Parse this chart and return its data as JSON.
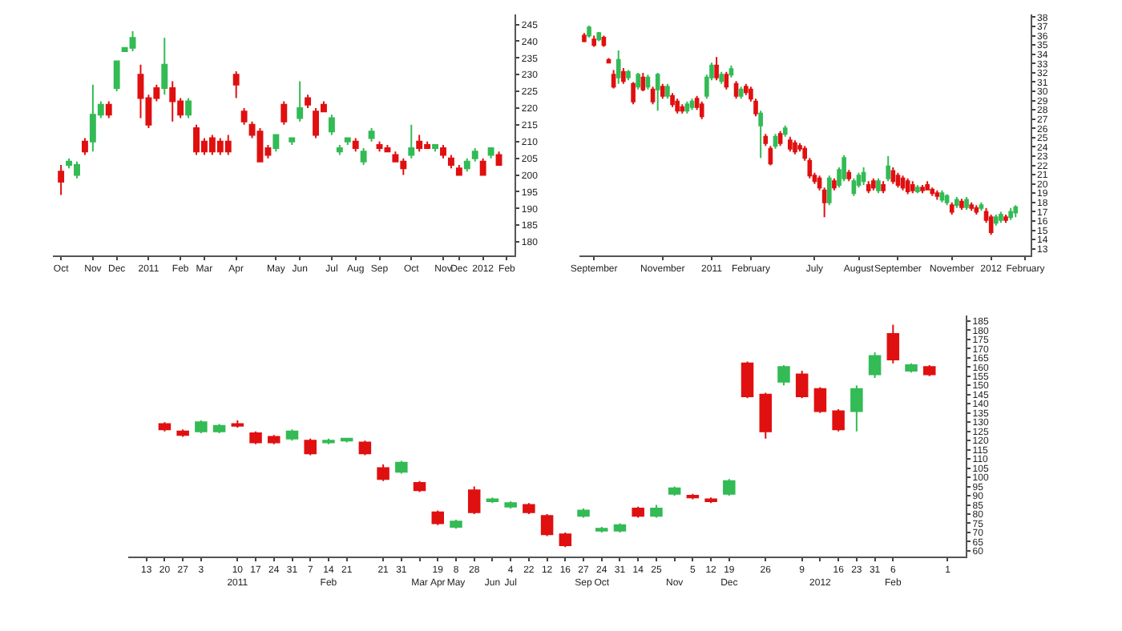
{
  "chart_data": [
    {
      "type": "candlestick",
      "ylim": [
        176,
        248
      ],
      "yticks": [
        180,
        185,
        190,
        195,
        200,
        205,
        210,
        215,
        220,
        225,
        230,
        235,
        240,
        245
      ],
      "categories": [
        "Oct",
        null,
        null,
        null,
        "Nov",
        null,
        null,
        "Dec",
        null,
        null,
        null,
        "2011",
        null,
        null,
        null,
        "Feb",
        null,
        null,
        "Mar",
        null,
        null,
        null,
        "Apr",
        null,
        null,
        null,
        null,
        "May",
        null,
        null,
        "Jun",
        null,
        null,
        null,
        "Jul",
        null,
        null,
        "Aug",
        null,
        null,
        "Sep",
        null,
        null,
        null,
        "Oct",
        null,
        null,
        null,
        "Nov",
        null,
        "Dec",
        null,
        null,
        "2012",
        null,
        null,
        "Feb"
      ],
      "colors": [
        "#e01010",
        "#33bb55",
        "#33bb55",
        "#e01010",
        "#33bb55",
        "#33bb55",
        "#e01010",
        "#33bb55",
        "#33bb55",
        "#33bb55",
        "#e01010",
        "#e01010",
        "#e01010",
        "#33bb55",
        "#e01010",
        "#e01010",
        "#33bb55",
        "#e01010",
        "#e01010",
        "#e01010",
        "#e01010",
        "#e01010",
        "#e01010",
        "#e01010",
        "#e01010",
        "#e01010",
        "#e01010",
        "#33bb55",
        "#e01010",
        "#33bb55",
        "#33bb55",
        "#e01010",
        "#e01010",
        "#e01010",
        "#33bb55",
        "#33bb55",
        "#33bb55",
        "#e01010",
        "#33bb55",
        "#33bb55",
        "#e01010",
        "#e01010",
        "#e01010",
        "#e01010",
        "#33bb55",
        "#e01010",
        "#e01010",
        "#33bb55",
        "#e01010",
        "#e01010",
        "#e01010",
        "#33bb55",
        "#33bb55",
        "#e01010",
        "#33bb55",
        "#e01010",
        null
      ],
      "ohlc": [
        [
          201,
          203,
          194,
          198
        ],
        [
          203,
          205,
          202,
          204
        ],
        [
          200,
          204,
          199,
          203
        ],
        [
          210,
          211,
          206,
          207
        ],
        [
          210,
          227,
          207,
          218
        ],
        [
          218,
          222,
          217,
          221
        ],
        [
          221,
          222,
          217,
          218
        ],
        [
          226,
          234,
          225,
          234
        ],
        [
          237,
          238,
          237,
          238
        ],
        [
          238,
          243,
          237,
          241
        ],
        [
          230,
          233,
          217,
          223
        ],
        [
          223,
          224,
          214,
          215
        ],
        [
          226,
          227,
          222,
          223
        ],
        [
          226,
          241,
          224,
          233
        ],
        [
          226,
          228,
          216,
          222
        ],
        [
          222,
          223,
          217,
          218
        ],
        [
          218,
          223,
          217,
          222
        ],
        [
          214,
          215,
          206,
          207
        ],
        [
          210,
          211,
          206,
          207
        ],
        [
          211,
          212,
          206,
          207
        ],
        [
          210,
          211,
          206,
          207
        ],
        [
          210,
          212,
          206,
          207
        ],
        [
          230,
          231,
          223,
          227
        ],
        [
          219,
          220,
          215,
          216
        ],
        [
          215,
          216,
          211,
          212
        ],
        [
          213,
          214,
          204,
          204
        ],
        [
          208,
          209,
          205,
          206
        ],
        [
          208,
          212,
          207,
          212
        ],
        [
          221,
          222,
          215,
          216
        ],
        [
          210,
          211,
          209,
          211
        ],
        [
          217,
          228,
          216,
          220
        ],
        [
          223,
          224,
          220,
          221
        ],
        [
          219,
          220,
          211,
          212
        ],
        [
          221,
          222,
          219,
          219
        ],
        [
          213,
          218,
          212,
          217
        ],
        [
          207,
          209,
          206,
          208
        ],
        [
          210,
          211,
          209,
          211
        ],
        [
          210,
          211,
          207,
          208
        ],
        [
          204,
          208,
          203,
          207
        ],
        [
          211,
          214,
          210,
          213
        ],
        [
          209,
          210,
          207,
          208
        ],
        [
          208,
          209,
          207,
          207
        ],
        [
          206,
          207,
          204,
          204
        ],
        [
          204,
          205,
          200,
          202
        ],
        [
          206,
          215,
          205,
          208
        ],
        [
          210,
          212,
          207,
          208
        ],
        [
          209,
          210,
          208,
          208
        ],
        [
          208,
          209,
          207,
          209
        ],
        [
          208,
          209,
          205,
          206
        ],
        [
          205,
          206,
          202,
          203
        ],
        [
          202,
          203,
          200,
          200
        ],
        [
          202,
          205,
          201,
          204
        ],
        [
          205,
          208,
          204,
          207
        ],
        [
          204,
          205,
          200,
          200
        ],
        [
          206,
          208,
          205,
          208
        ],
        [
          206,
          207,
          203,
          203
        ],
        null
      ]
    },
    {
      "type": "candlestick",
      "ylim": [
        12.3,
        38.3
      ],
      "yticks": [
        13,
        14,
        15,
        16,
        17,
        18,
        19,
        20,
        21,
        22,
        23,
        24,
        25,
        26,
        27,
        28,
        29,
        30,
        31,
        32,
        33,
        34,
        35,
        36,
        37,
        38
      ],
      "categories": [
        null,
        null,
        "September",
        null,
        null,
        null,
        null,
        null,
        null,
        null,
        null,
        null,
        null,
        null,
        null,
        null,
        "November",
        null,
        null,
        null,
        null,
        null,
        null,
        null,
        null,
        null,
        "2011",
        null,
        null,
        null,
        null,
        null,
        null,
        null,
        "February",
        null,
        null,
        null,
        null,
        null,
        null,
        null,
        null,
        null,
        null,
        null,
        null,
        "July",
        null,
        null,
        null,
        null,
        null,
        null,
        null,
        null,
        "August",
        null,
        null,
        null,
        null,
        null,
        null,
        null,
        "September",
        null,
        null,
        null,
        null,
        null,
        null,
        null,
        null,
        null,
        null,
        "November",
        null,
        null,
        null,
        null,
        null,
        null,
        null,
        "2012",
        null,
        null,
        null,
        null,
        null,
        null,
        "February"
      ],
      "colors": [
        "#e01010",
        "#33bb55",
        "#e01010",
        "#33bb55",
        "#e01010",
        "#e01010",
        "#e01010",
        "#33bb55",
        "#e01010",
        "#33bb55",
        "#e01010",
        "#33bb55",
        "#e01010",
        "#33bb55",
        "#e01010",
        "#33bb55",
        "#e01010",
        "#33bb55",
        "#e01010",
        "#e01010",
        "#e01010",
        "#33bb55",
        "#33bb55",
        "#e01010",
        "#e01010",
        "#33bb55",
        "#33bb55",
        "#e01010",
        "#33bb55",
        "#e01010",
        "#33bb55",
        "#e01010",
        "#33bb55",
        "#e01010",
        "#e01010",
        "#e01010",
        "#33bb55",
        "#e01010",
        "#e01010",
        "#33bb55",
        "#e01010",
        "#33bb55",
        "#e01010",
        "#e01010",
        "#e01010",
        "#e01010",
        "#e01010",
        "#e01010",
        "#e01010",
        "#e01010",
        "#33bb55",
        "#e01010",
        "#33bb55",
        "#33bb55",
        "#e01010",
        "#33bb55",
        "#33bb55",
        "#33bb55",
        "#e01010",
        "#e01010",
        "#33bb55",
        "#e01010",
        "#33bb55",
        "#e01010",
        "#e01010",
        "#e01010",
        "#e01010",
        "#e01010",
        "#33bb55",
        "#e01010",
        "#e01010",
        "#e01010",
        "#e01010",
        "#33bb55",
        "#33bb55",
        "#e01010",
        "#33bb55",
        "#e01010",
        "#33bb55",
        "#e01010",
        "#e01010",
        "#33bb55",
        "#e01010",
        "#e01010",
        "#33bb55",
        "#33bb55",
        "#e01010",
        "#33bb55",
        "#33bb55",
        null,
        null
      ],
      "ohlc": [
        [
          36.0,
          36.3,
          35.3,
          35.4
        ],
        [
          36.0,
          37.1,
          35.8,
          36.9
        ],
        [
          35.6,
          36.0,
          34.8,
          35.0
        ],
        [
          35.6,
          36.4,
          35.4,
          36.3
        ],
        [
          35.8,
          36.0,
          34.8,
          35.0
        ],
        [
          33.4,
          33.6,
          33.0,
          33.1
        ],
        [
          31.8,
          32.3,
          30.3,
          30.5
        ],
        [
          31.5,
          34.4,
          30.8,
          33.4
        ],
        [
          32.1,
          32.5,
          30.8,
          31.1
        ],
        [
          31.5,
          32.3,
          31.2,
          32.1
        ],
        [
          30.8,
          31.0,
          28.6,
          28.9
        ],
        [
          30.5,
          32.0,
          30.2,
          31.8
        ],
        [
          31.5,
          32.0,
          30.0,
          30.2
        ],
        [
          30.5,
          31.8,
          30.2,
          31.5
        ],
        [
          30.2,
          30.5,
          28.6,
          28.9
        ],
        [
          30.2,
          32.0,
          27.9,
          31.8
        ],
        [
          30.5,
          30.8,
          29.2,
          29.5
        ],
        [
          29.5,
          30.8,
          29.2,
          30.5
        ],
        [
          29.5,
          29.8,
          28.3,
          28.6
        ],
        [
          28.9,
          29.2,
          27.6,
          27.9
        ],
        [
          28.3,
          28.6,
          27.6,
          27.9
        ],
        [
          27.9,
          28.9,
          27.6,
          28.6
        ],
        [
          28.3,
          29.2,
          28.0,
          28.9
        ],
        [
          29.2,
          29.5,
          28.0,
          28.3
        ],
        [
          28.6,
          28.9,
          27.0,
          27.3
        ],
        [
          29.5,
          31.8,
          29.2,
          31.5
        ],
        [
          31.5,
          33.1,
          31.2,
          32.8
        ],
        [
          32.8,
          33.7,
          31.2,
          31.5
        ],
        [
          31.1,
          32.1,
          30.8,
          31.8
        ],
        [
          31.8,
          32.1,
          30.2,
          30.5
        ],
        [
          31.8,
          32.8,
          31.5,
          32.4
        ],
        [
          30.8,
          31.1,
          29.2,
          29.5
        ],
        [
          29.5,
          30.5,
          29.2,
          30.2
        ],
        [
          30.5,
          30.8,
          29.6,
          29.9
        ],
        [
          30.2,
          30.5,
          28.9,
          29.2
        ],
        [
          28.9,
          29.2,
          27.3,
          27.6
        ],
        [
          26.3,
          27.9,
          22.8,
          27.6
        ],
        [
          25.1,
          25.4,
          24.1,
          24.4
        ],
        [
          23.8,
          24.1,
          22.0,
          22.2
        ],
        [
          24.1,
          25.4,
          23.8,
          25.1
        ],
        [
          25.4,
          25.7,
          24.1,
          24.4
        ],
        [
          25.4,
          26.3,
          25.1,
          26.0
        ],
        [
          24.7,
          25.1,
          23.5,
          23.8
        ],
        [
          24.4,
          24.7,
          23.2,
          23.5
        ],
        [
          24.1,
          24.4,
          23.5,
          23.8
        ],
        [
          23.8,
          24.1,
          22.5,
          22.8
        ],
        [
          22.5,
          22.8,
          20.6,
          20.9
        ],
        [
          20.9,
          21.2,
          20.0,
          20.3
        ],
        [
          20.6,
          20.9,
          19.3,
          19.6
        ],
        [
          19.3,
          19.6,
          16.4,
          18.0
        ],
        [
          18.0,
          20.9,
          17.7,
          20.6
        ],
        [
          20.3,
          20.6,
          19.3,
          19.6
        ],
        [
          19.9,
          21.8,
          19.6,
          21.5
        ],
        [
          20.6,
          23.1,
          20.3,
          22.8
        ],
        [
          21.2,
          21.5,
          20.3,
          20.6
        ],
        [
          19.0,
          20.6,
          18.7,
          20.3
        ],
        [
          19.9,
          21.2,
          19.6,
          20.9
        ],
        [
          20.3,
          21.8,
          19.9,
          21.2
        ],
        [
          19.9,
          20.3,
          19.0,
          19.3
        ],
        [
          20.3,
          20.6,
          19.3,
          19.6
        ],
        [
          19.3,
          20.6,
          19.0,
          20.3
        ],
        [
          19.9,
          20.3,
          19.0,
          19.3
        ],
        [
          20.6,
          23.0,
          20.3,
          21.9
        ],
        [
          21.4,
          21.8,
          20.0,
          20.3
        ],
        [
          20.9,
          21.2,
          19.6,
          19.9
        ],
        [
          20.6,
          20.9,
          19.3,
          19.6
        ],
        [
          20.3,
          20.6,
          18.9,
          19.2
        ],
        [
          19.9,
          20.3,
          19.0,
          19.3
        ],
        [
          19.2,
          19.9,
          19.0,
          19.6
        ],
        [
          19.6,
          19.9,
          19.0,
          19.3
        ],
        [
          19.9,
          20.3,
          19.3,
          19.4
        ],
        [
          19.4,
          19.6,
          18.7,
          19.0
        ],
        [
          19.0,
          19.3,
          18.3,
          18.7
        ],
        [
          18.3,
          19.3,
          18.0,
          19.0
        ],
        [
          18.0,
          18.9,
          17.7,
          18.7
        ],
        [
          17.7,
          18.0,
          16.7,
          17.0
        ],
        [
          17.7,
          18.6,
          17.4,
          18.3
        ],
        [
          18.1,
          18.4,
          17.2,
          17.5
        ],
        [
          17.5,
          18.6,
          17.2,
          18.3
        ],
        [
          17.7,
          18.0,
          17.1,
          17.4
        ],
        [
          17.4,
          17.7,
          16.7,
          17.0
        ],
        [
          17.4,
          18.0,
          17.1,
          17.7
        ],
        [
          17.0,
          17.4,
          15.8,
          16.1
        ],
        [
          16.4,
          16.7,
          14.5,
          14.8
        ],
        [
          15.8,
          16.7,
          15.5,
          16.4
        ],
        [
          16.1,
          17.0,
          15.8,
          16.7
        ],
        [
          16.4,
          16.7,
          15.8,
          16.1
        ],
        [
          16.4,
          17.4,
          16.1,
          17.0
        ],
        [
          16.9,
          17.7,
          16.4,
          17.5
        ],
        null,
        null
      ]
    },
    {
      "type": "candlestick",
      "ylim": [
        57,
        188
      ],
      "yticks": [
        60,
        65,
        70,
        75,
        80,
        85,
        90,
        95,
        100,
        105,
        110,
        115,
        120,
        125,
        130,
        135,
        140,
        145,
        150,
        155,
        160,
        165,
        170,
        175,
        180,
        185
      ],
      "categories": [
        "13",
        "20",
        "27",
        "3",
        null,
        "10\n2011",
        "17",
        "24",
        "31",
        "7",
        "14\nFeb",
        "21",
        null,
        "21",
        "31",
        "\nMar",
        "19\nApr",
        "8\nMay",
        "28",
        "\nJun",
        "4\nJul",
        "22",
        "12",
        "16",
        "27\nSep",
        "24\nOct",
        "31",
        "14",
        "25",
        "\nNov",
        "5",
        "12",
        "19\nDec",
        null,
        "26",
        null,
        "9",
        "\n2012",
        "16",
        "23",
        "31",
        "6\nFeb",
        null,
        null,
        "1"
      ],
      "colors": [
        null,
        "#e01010",
        "#e01010",
        "#33bb55",
        "#33bb55",
        "#e01010",
        "#e01010",
        "#e01010",
        "#33bb55",
        "#e01010",
        "#33bb55",
        "#33bb55",
        "#e01010",
        "#e01010",
        "#33bb55",
        "#e01010",
        "#e01010",
        "#33bb55",
        "#e01010",
        "#33bb55",
        "#33bb55",
        "#e01010",
        "#e01010",
        "#e01010",
        "#33bb55",
        "#33bb55",
        "#33bb55",
        "#e01010",
        "#33bb55",
        "#33bb55",
        "#e01010",
        "#e01010",
        "#33bb55",
        "#e01010",
        "#e01010",
        "#33bb55",
        "#e01010",
        "#e01010",
        "#e01010",
        "#33bb55",
        "#33bb55",
        "#e01010",
        "#33bb55",
        "#e01010",
        null
      ],
      "ohlc": [
        null,
        [
          129,
          130,
          125,
          126
        ],
        [
          125,
          126,
          122,
          123
        ],
        [
          125,
          131,
          124,
          130
        ],
        [
          125,
          129,
          124,
          128
        ],
        [
          129,
          131,
          127,
          128
        ],
        [
          124,
          125,
          118,
          119
        ],
        [
          122,
          123,
          118,
          119
        ],
        [
          121,
          126,
          120,
          125
        ],
        [
          120,
          121,
          112,
          113
        ],
        [
          119,
          121,
          118,
          120
        ],
        [
          120,
          121,
          119,
          121
        ],
        [
          119,
          120,
          112,
          113
        ],
        [
          105,
          107,
          98,
          99
        ],
        [
          103,
          109,
          102,
          108
        ],
        [
          97,
          98,
          92,
          93
        ],
        [
          81,
          82,
          74,
          75
        ],
        [
          73,
          77,
          72,
          76
        ],
        [
          93,
          95,
          80,
          81
        ],
        [
          87,
          89,
          86,
          88
        ],
        [
          84,
          87,
          83,
          86
        ],
        [
          85,
          86,
          80,
          81
        ],
        [
          79,
          80,
          68,
          69
        ],
        [
          69,
          70,
          62,
          63
        ],
        [
          79,
          83,
          78,
          82
        ],
        [
          71,
          73,
          70,
          72
        ],
        [
          71,
          75,
          70,
          74
        ],
        [
          83,
          84,
          78,
          79
        ],
        [
          79,
          85,
          78,
          83
        ],
        [
          91,
          95,
          90,
          94
        ],
        [
          90,
          91,
          88,
          89
        ],
        [
          88,
          89,
          86,
          87
        ],
        [
          91,
          99,
          90,
          98
        ],
        [
          162,
          163,
          143,
          144
        ],
        [
          145,
          146,
          121,
          125
        ],
        [
          152,
          161,
          150,
          160
        ],
        [
          156,
          158,
          143,
          144
        ],
        [
          148,
          149,
          135,
          136
        ],
        [
          136,
          137,
          125,
          126
        ],
        [
          136,
          150,
          125,
          148
        ],
        [
          156,
          168,
          154,
          166
        ],
        [
          178,
          183,
          162,
          164
        ],
        [
          158,
          162,
          157,
          161
        ],
        [
          160,
          161,
          155,
          156
        ],
        null
      ]
    }
  ]
}
